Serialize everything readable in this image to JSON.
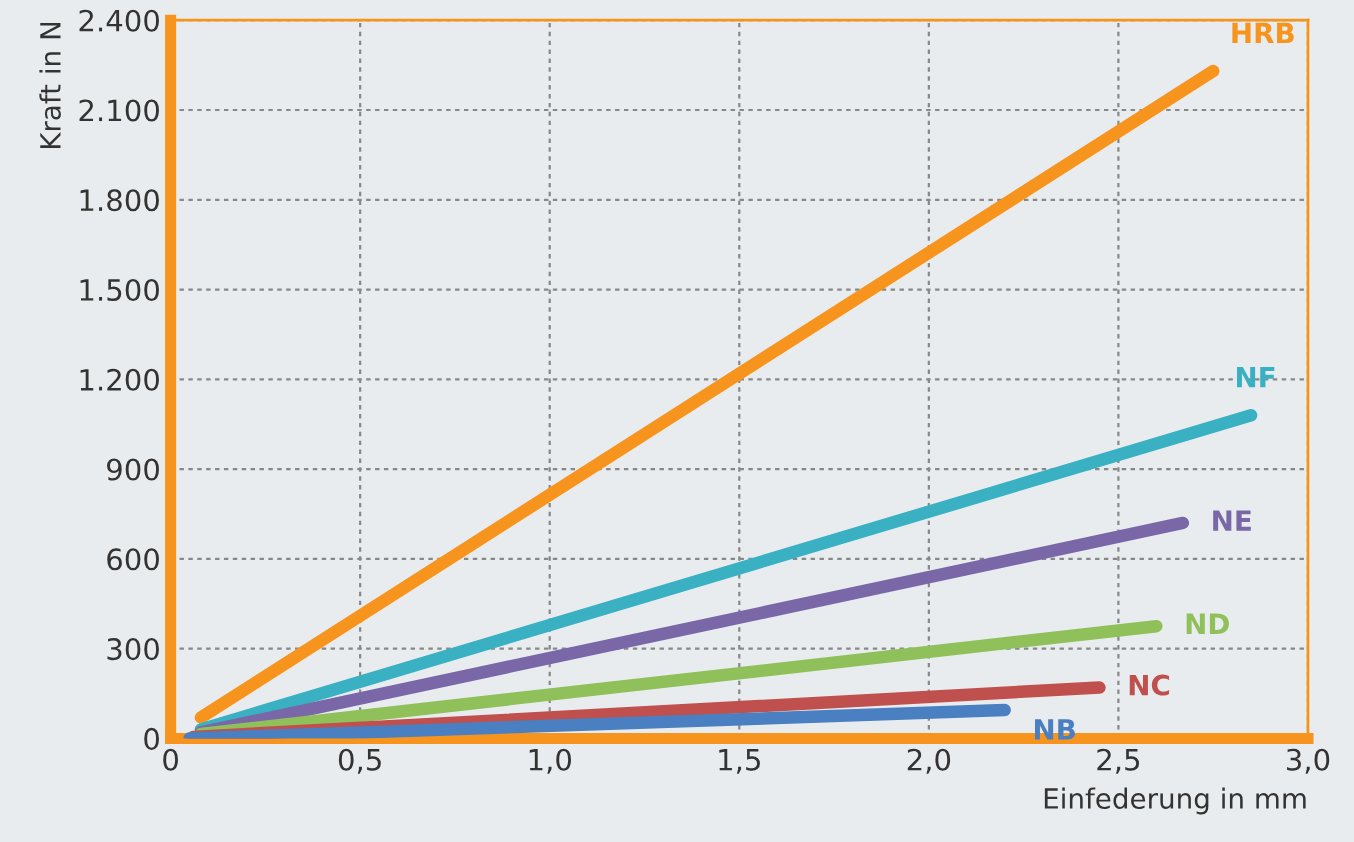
{
  "chart_data": {
    "type": "line",
    "xlabel": "Einfederung in mm",
    "ylabel": "Kraft in N",
    "xlim": [
      0,
      3.0
    ],
    "ylim": [
      0,
      2400
    ],
    "xticks": [
      0,
      {
        "value": 0.5,
        "label": "0,5"
      },
      {
        "value": 1.0,
        "label": "1,0"
      },
      {
        "value": 1.5,
        "label": "1,5"
      },
      {
        "value": 2.0,
        "label": "2,0"
      },
      {
        "value": 2.5,
        "label": "2,5"
      },
      {
        "value": 3.0,
        "label": "3,0"
      }
    ],
    "yticks": [
      0,
      300,
      600,
      900,
      {
        "value": 1200,
        "label": "1.200"
      },
      {
        "value": 1500,
        "label": "1.500"
      },
      {
        "value": 1800,
        "label": "1.800"
      },
      {
        "value": 2100,
        "label": "2.100"
      },
      {
        "value": 2400,
        "label": "2.400"
      }
    ],
    "grid": true,
    "marker": "none",
    "line_style": "solid",
    "legend": false,
    "series": [
      {
        "name": "HRB",
        "color": "#f7941d",
        "x": [
          0.08,
          2.75
        ],
        "values": [
          70,
          2230
        ]
      },
      {
        "name": "NF",
        "color": "#3ab0c3",
        "x": [
          0.08,
          2.85
        ],
        "values": [
          30,
          1080
        ]
      },
      {
        "name": "NE",
        "color": "#7a67a8",
        "x": [
          0.08,
          2.67
        ],
        "values": [
          20,
          720
        ]
      },
      {
        "name": "ND",
        "color": "#8fc05a",
        "x": [
          0.08,
          2.6
        ],
        "values": [
          15,
          375
        ]
      },
      {
        "name": "NC",
        "color": "#c0504d",
        "x": [
          0.06,
          2.45
        ],
        "values": [
          5,
          170
        ]
      },
      {
        "name": "NB",
        "color": "#4a7fc1",
        "x": [
          0.05,
          2.2
        ],
        "values": [
          0,
          95
        ]
      }
    ]
  }
}
